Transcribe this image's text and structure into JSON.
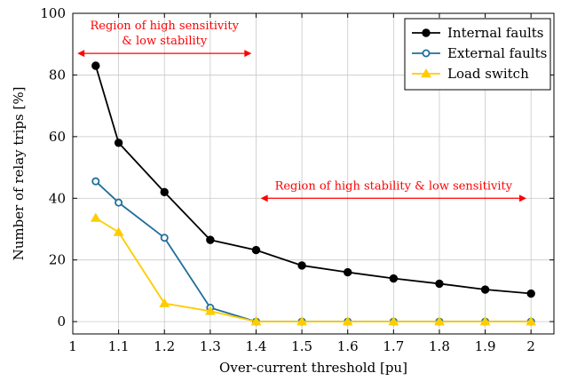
{
  "chart_data": {
    "type": "line",
    "xlabel": "Over-current threshold [pu]",
    "ylabel": "Number of relay trips [%]",
    "xlim": [
      1,
      2.05
    ],
    "ylim": [
      -4,
      100
    ],
    "xticks": [
      1,
      1.1,
      1.2,
      1.3,
      1.4,
      1.5,
      1.6,
      1.7,
      1.8,
      1.9,
      2
    ],
    "xtick_labels": [
      "1",
      "1.1",
      "1.2",
      "1.3",
      "1.4",
      "1.5",
      "1.6",
      "1.7",
      "1.8",
      "1.9",
      "2"
    ],
    "yticks": [
      0,
      20,
      40,
      60,
      80,
      100
    ],
    "ytick_labels": [
      "0",
      "20",
      "40",
      "60",
      "80",
      "100"
    ],
    "grid": true,
    "legend_position": "top-right",
    "x": [
      1.05,
      1.1,
      1.2,
      1.3,
      1.4,
      1.5,
      1.6,
      1.7,
      1.8,
      1.9,
      2
    ],
    "series": [
      {
        "name": "Internal faults",
        "color": "#000000",
        "marker": "filled-circle",
        "values": [
          83,
          58,
          42,
          26.5,
          23.2,
          18.2,
          16,
          14,
          12.3,
          10.4,
          9.1
        ]
      },
      {
        "name": "External faults",
        "color": "#1f6f9b",
        "marker": "open-circle",
        "values": [
          45.5,
          38.6,
          27.2,
          4.5,
          0,
          0,
          0,
          0,
          0,
          0,
          0
        ]
      },
      {
        "name": "Load switch",
        "color": "#ffcc00",
        "marker": "triangle",
        "values": [
          33.6,
          29,
          5.9,
          3.4,
          0,
          0,
          0,
          0,
          0,
          0,
          0
        ]
      }
    ],
    "annotations": [
      {
        "lines": [
          "Region of high sensitivity",
          "& low stability"
        ],
        "color": "#ff0000",
        "arrow_from_x": 1.01,
        "arrow_to_x": 1.39,
        "arrow_y": 87
      },
      {
        "lines": [
          "Region of high stability & low sensitivity"
        ],
        "color": "#ff0000",
        "arrow_from_x": 1.41,
        "arrow_to_x": 1.99,
        "arrow_y": 40
      }
    ]
  }
}
